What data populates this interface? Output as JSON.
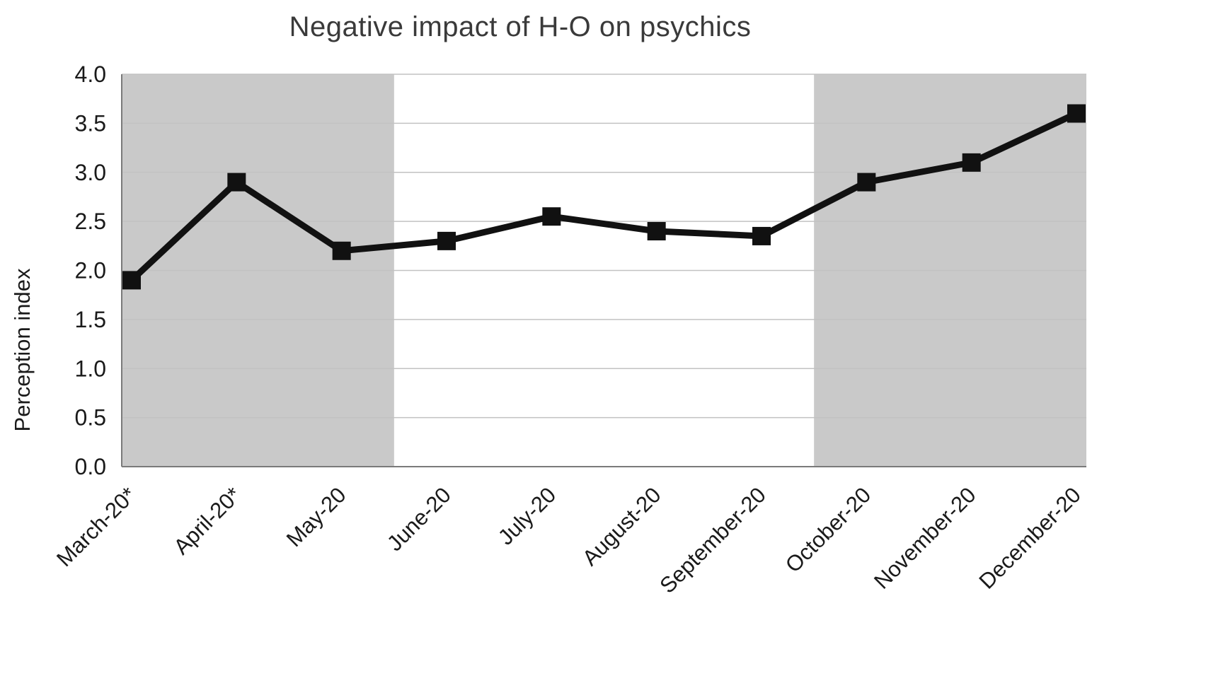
{
  "chart_data": {
    "type": "line",
    "title": "Negative impact of H-O on psychics",
    "xlabel": "",
    "ylabel": "Perception index",
    "categories": [
      "March-20*",
      "April-20*",
      "May-20",
      "June-20",
      "July-20",
      "August-20",
      "September-20",
      "October-20",
      "November-20",
      "December-20"
    ],
    "series": [
      {
        "name": "Perception index",
        "values": [
          1.9,
          2.9,
          2.2,
          2.3,
          2.55,
          2.4,
          2.35,
          2.9,
          3.1,
          3.6
        ]
      }
    ],
    "ylim": [
      0.0,
      4.0
    ],
    "ytick_step": 0.5,
    "ytick_labels": [
      "0.0",
      "0.5",
      "1.0",
      "1.5",
      "2.0",
      "2.5",
      "3.0",
      "3.5",
      "4.0"
    ],
    "grid": true,
    "legend": "none",
    "line_color": "#111111",
    "marker": "square",
    "gridline_color": "#c2c2c2",
    "band_color": "#c9c9c9",
    "axis_color": "#7a7a7a",
    "tick_label_color": "#1a1a1a",
    "shaded_regions": [
      {
        "from": -0.5,
        "to": 2.5
      },
      {
        "from": 6.5,
        "to": 9.5
      }
    ]
  }
}
